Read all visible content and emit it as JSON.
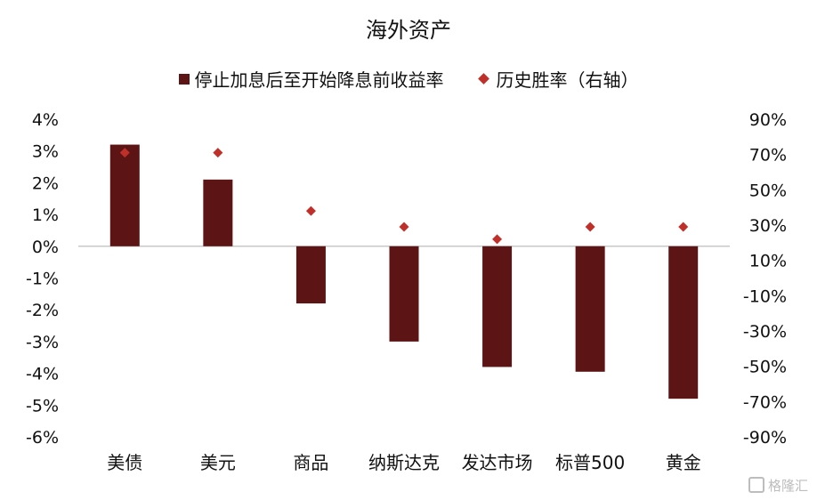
{
  "colors": {
    "bar": "#5c1414",
    "marker": "#c0302a",
    "axis": "#c8c8c8"
  },
  "chart_data": {
    "type": "bar",
    "title": "海外资产",
    "categories": [
      "美债",
      "美元",
      "商品",
      "纳斯达克",
      "发达市场",
      "标普500",
      "黄金"
    ],
    "series": [
      {
        "name": "停止加息后至开始降息前收益率",
        "kind": "bar",
        "axis": "left",
        "values": [
          3.2,
          2.1,
          -1.8,
          -3.0,
          -3.8,
          -3.95,
          -4.8
        ]
      },
      {
        "name": "历史胜率（右轴）",
        "kind": "scatter",
        "marker": "diamond",
        "axis": "right",
        "values": [
          71,
          71,
          38,
          29,
          22,
          29,
          29
        ]
      }
    ],
    "left_axis": {
      "ylim": [
        -6,
        4
      ],
      "ticks": [
        4,
        3,
        2,
        1,
        0,
        -1,
        -2,
        -3,
        -4,
        -5,
        -6
      ],
      "unit": "%"
    },
    "right_axis": {
      "ylim": [
        -90,
        90
      ],
      "ticks": [
        90,
        70,
        50,
        30,
        10,
        -10,
        -30,
        -50,
        -70,
        -90
      ],
      "unit": "%"
    },
    "legend_position": "top-center",
    "grid": false
  },
  "watermark": "格隆汇"
}
